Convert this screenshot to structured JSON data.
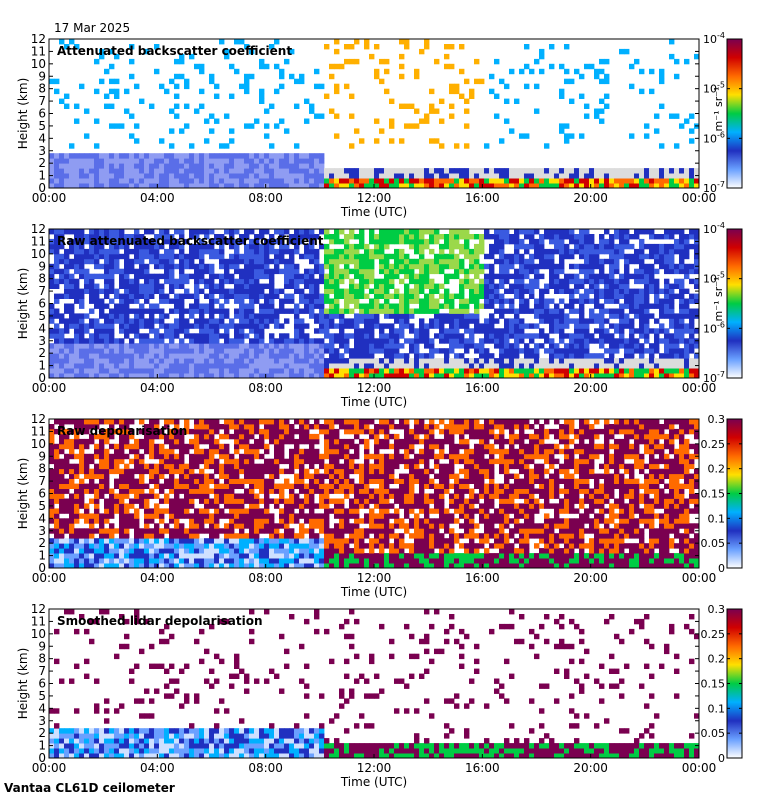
{
  "date_label": "17 Mar 2025",
  "footer_label": "Vantaa CL61D ceilometer",
  "x_ticks": [
    "00:00",
    "04:00",
    "08:00",
    "12:00",
    "16:00",
    "20:00",
    "00:00"
  ],
  "xlabel": "Time (UTC)",
  "ylabel": "Height (km)",
  "y_ticks": [
    0,
    1,
    2,
    3,
    4,
    5,
    6,
    7,
    8,
    9,
    10,
    11,
    12
  ],
  "colorscale_colors": [
    "#ffffff",
    "#6aa0ff",
    "#2030c0",
    "#00b0ff",
    "#00cc44",
    "#ffe000",
    "#ff6a00",
    "#d00000",
    "#7a0050"
  ],
  "chart_data": [
    {
      "type": "heatmap",
      "title": "Attenuated backscatter coefficient",
      "xlabel": "Time (UTC)",
      "ylabel": "Height (km)",
      "xlim": [
        "00:00",
        "24:00"
      ],
      "ylim": [
        0,
        12
      ],
      "colorbar": {
        "scale": "log",
        "ticks": [
          "10^-4",
          "10^-5",
          "10^-6",
          "10^-7"
        ],
        "unit": "m⁻¹ sr⁻¹"
      }
    },
    {
      "type": "heatmap",
      "title": "Raw attenuated backscatter coefficient",
      "xlabel": "Time (UTC)",
      "ylabel": "Height (km)",
      "xlim": [
        "00:00",
        "24:00"
      ],
      "ylim": [
        0,
        12
      ],
      "colorbar": {
        "scale": "log",
        "ticks": [
          "10^-4",
          "10^-5",
          "10^-6",
          "10^-7"
        ],
        "unit": "m⁻¹ sr⁻¹"
      }
    },
    {
      "type": "heatmap",
      "title": "Raw depolarisation",
      "xlabel": "Time (UTC)",
      "ylabel": "Height (km)",
      "xlim": [
        "00:00",
        "24:00"
      ],
      "ylim": [
        0,
        12
      ],
      "colorbar": {
        "scale": "linear",
        "ticks": [
          "0.3",
          "0.25",
          "0.2",
          "0.15",
          "0.1",
          "0.05",
          "0"
        ],
        "unit": ""
      }
    },
    {
      "type": "heatmap",
      "title": "Smoothed lidar depolarisation",
      "xlabel": "Time (UTC)",
      "ylabel": "Height (km)",
      "xlim": [
        "00:00",
        "24:00"
      ],
      "ylim": [
        0,
        12
      ],
      "colorbar": {
        "scale": "linear",
        "ticks": [
          "0.3",
          "0.25",
          "0.2",
          "0.15",
          "0.1",
          "0.05",
          "0"
        ],
        "unit": ""
      }
    }
  ]
}
